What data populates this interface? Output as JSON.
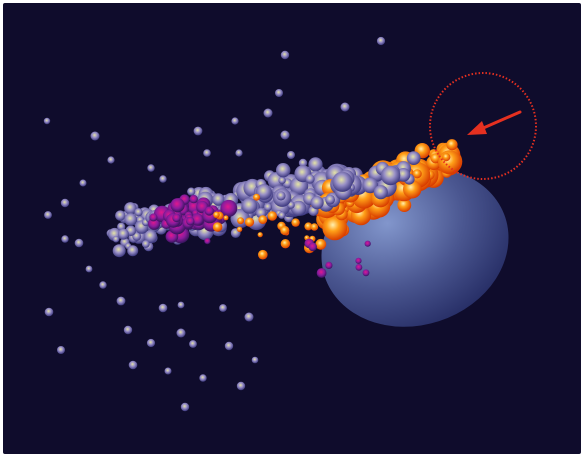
{
  "canvas": {
    "background": "#0f0c2c"
  },
  "palette": {
    "cool_core": "#d9d99a",
    "cool_mid": "#8f86c4",
    "cool_edge": "#3f3a82",
    "magenta_core": "#c0178a",
    "magenta_mid": "#8a1a9c",
    "magenta_edge": "#3a1660",
    "fire_core": "#ffe8a0",
    "fire_mid": "#ff8c0a",
    "fire_edge": "#d63a00",
    "ellipse_light": "#7a8cc4",
    "ellipse_dark": "#28306a",
    "arrow": "#e53020",
    "target_ring": "#e53020"
  },
  "elements": {
    "particle_cloud": "particle-cloud",
    "ellipse": "ellipse-region",
    "target": "target-circle",
    "arrow": "arrow-icon"
  }
}
